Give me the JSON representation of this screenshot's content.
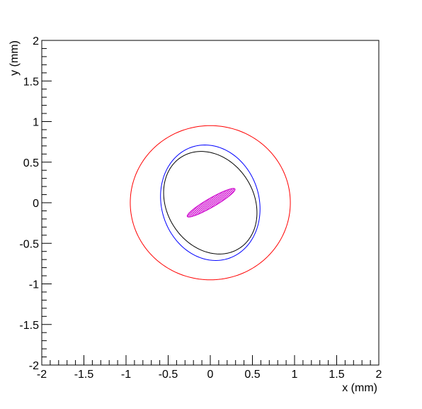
{
  "chart_data": {
    "type": "ellipse",
    "x_label": "x (mm)",
    "y_label": "y (mm)",
    "xlim": [
      -2,
      2
    ],
    "ylim": [
      -2,
      2
    ],
    "xticks": [
      -2,
      -1.5,
      -1,
      -0.5,
      0,
      0.5,
      1,
      1.5,
      2
    ],
    "yticks": [
      -2,
      -1.5,
      -1,
      -0.5,
      0,
      0.5,
      1,
      1.5,
      2
    ],
    "series": [
      {
        "color": "#ff0000",
        "cx": 0,
        "cy": 0,
        "rx": 0.95,
        "ry": 0.95,
        "angle": 0,
        "filled": false
      },
      {
        "color": "#0000ff",
        "cx": 0,
        "cy": 0,
        "rx": 0.72,
        "ry": 0.58,
        "angle": 105,
        "filled": false
      },
      {
        "color": "#000000",
        "cx": 0,
        "cy": 0,
        "rx": 0.66,
        "ry": 0.52,
        "angle": 118,
        "filled": false
      },
      {
        "color": "#cc00cc",
        "cx": 0.01,
        "cy": 0,
        "rx": 0.33,
        "ry": 0.055,
        "angle": 31,
        "filled": true
      }
    ]
  }
}
